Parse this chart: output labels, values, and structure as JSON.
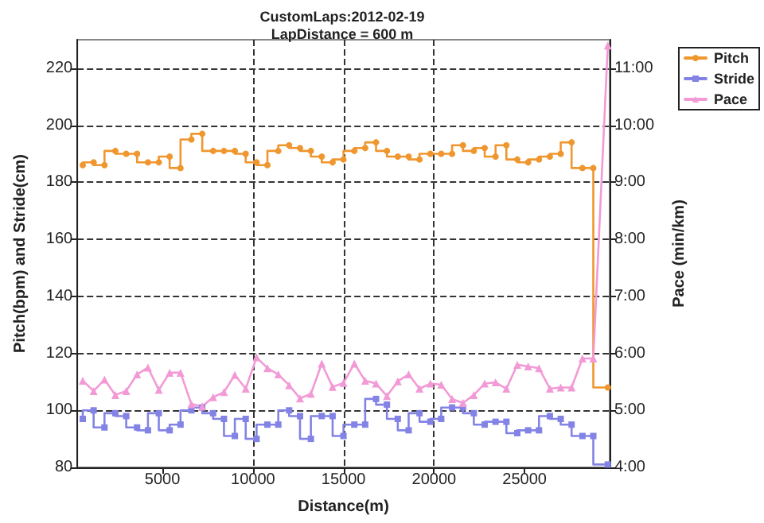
{
  "chart_data": {
    "type": "step",
    "title": "CustomLaps:2012-02-19",
    "subtitle": "LapDistance = 600 m",
    "xlabel": "Distance(m)",
    "ylabel": "Pitch(bpm) and Stride(cm)",
    "y2label": "Pace (min/km)",
    "x": [
      600,
      1200,
      1800,
      2400,
      3000,
      3600,
      4200,
      4800,
      5400,
      6000,
      6600,
      7200,
      7800,
      8400,
      9000,
      9600,
      10200,
      10800,
      11400,
      12000,
      12600,
      13200,
      13800,
      14400,
      15000,
      15600,
      16200,
      16800,
      17400,
      18000,
      18600,
      19200,
      19800,
      20400,
      21000,
      21600,
      22200,
      22800,
      23400,
      24000,
      24600,
      25200,
      25800,
      26400,
      27000,
      27600,
      28200,
      28800,
      29600
    ],
    "series": [
      {
        "name": "Pitch",
        "marker": "circle",
        "color": "#f0962e",
        "values": [
          186,
          187,
          186,
          191,
          190,
          190,
          187,
          187,
          189,
          185,
          195,
          197,
          191,
          191,
          191,
          190,
          187,
          186,
          191,
          193,
          192,
          191,
          189,
          187,
          188,
          191,
          192,
          194,
          191,
          189,
          189,
          188,
          190,
          190,
          190,
          193,
          191,
          192,
          189,
          193,
          188,
          187,
          188,
          189,
          190,
          194,
          185,
          185,
          108
        ]
      },
      {
        "name": "Stride",
        "marker": "square",
        "color": "#8383e6",
        "values": [
          97,
          100,
          94,
          99,
          98,
          94,
          93,
          99,
          93,
          95,
          100,
          101,
          99,
          97,
          91,
          97,
          90,
          95,
          95,
          100,
          98,
          90,
          98,
          98,
          91,
          95,
          95,
          104,
          102,
          97,
          93,
          99,
          96,
          97,
          101,
          101,
          99,
          95,
          96,
          96,
          92,
          93,
          93,
          98,
          97,
          95,
          91,
          91,
          81
        ]
      },
      {
        "name": "Pace",
        "type": "line",
        "axis": "y2",
        "marker": "triangle",
        "color": "#f29ad6",
        "values": [
          5.52,
          5.34,
          5.54,
          5.27,
          5.34,
          5.63,
          5.75,
          5.36,
          5.66,
          5.66,
          5.11,
          5.07,
          5.23,
          5.32,
          5.62,
          5.38,
          5.93,
          5.74,
          5.63,
          5.44,
          5.21,
          5.29,
          5.82,
          5.41,
          5.48,
          5.82,
          5.52,
          5.47,
          5.25,
          5.51,
          5.63,
          5.38,
          5.47,
          5.45,
          5.2,
          5.13,
          5.27,
          5.47,
          5.49,
          5.38,
          5.8,
          5.77,
          5.74,
          5.38,
          5.4,
          5.4,
          5.91,
          5.91,
          11.4
        ]
      }
    ],
    "xlim": [
      300,
      29700
    ],
    "xticks": [
      5000,
      10000,
      15000,
      20000,
      25000
    ],
    "ylim": [
      80,
      230
    ],
    "yticks": [
      80,
      100,
      120,
      140,
      160,
      180,
      200,
      220
    ],
    "y2lim": [
      4,
      11.5
    ],
    "y2ticks": [
      {
        "value": 4,
        "label": "4:00"
      },
      {
        "value": 5,
        "label": "5:00"
      },
      {
        "value": 6,
        "label": "6:00"
      },
      {
        "value": 7,
        "label": "7:00"
      },
      {
        "value": 8,
        "label": "8:00"
      },
      {
        "value": 9,
        "label": "9:00"
      },
      {
        "value": 10,
        "label": "10:00"
      },
      {
        "value": 11,
        "label": "11:00"
      }
    ],
    "grid": true,
    "legend": "top right"
  }
}
